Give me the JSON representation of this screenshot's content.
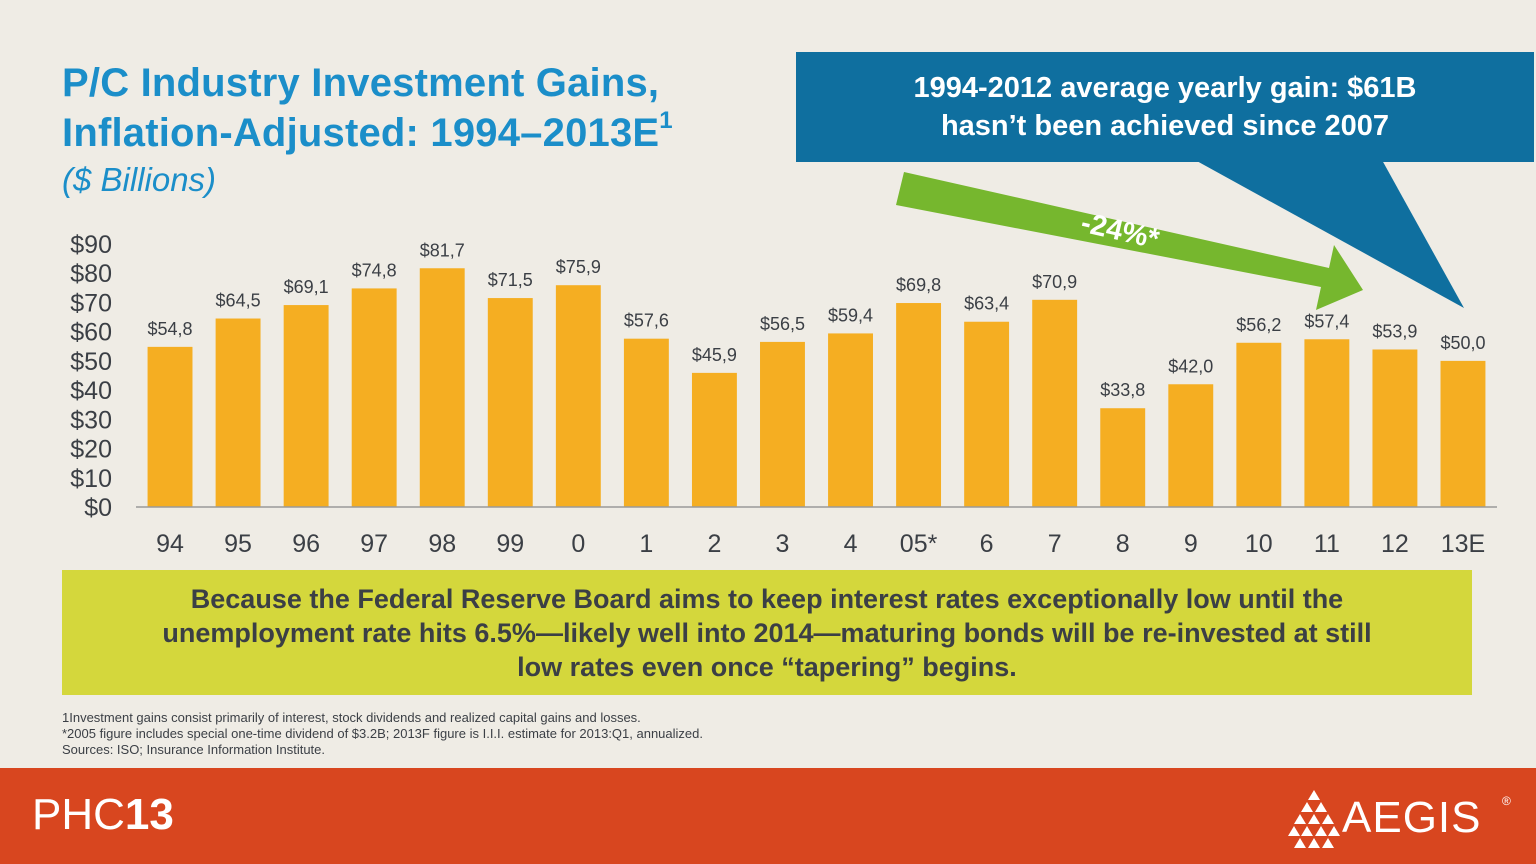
{
  "title": {
    "line1": "P/C Industry Investment Gains,",
    "line2": "Inflation-Adjusted: 1994–2013E",
    "sup": "1",
    "subtitle": "($ Billions)"
  },
  "callout": {
    "line1": "1994-2012 average yearly gain: $61B",
    "line2": "hasn’t been achieved since 2007",
    "arrow_label": "-24%*"
  },
  "message": {
    "line1": "Because the Federal Reserve Board aims to keep interest rates exceptionally low until the",
    "line2": "unemployment rate hits 6.5%—likely well into 2014—maturing bonds will be re-invested at still",
    "line3": "low rates even once “tapering” begins."
  },
  "footnotes": {
    "line1": "1Investment gains consist primarily of interest, stock dividends and realized capital gains and losses.",
    "line2": "*2005 figure includes special one-time dividend of $3.2B; 2013F figure is I.I.I.  estimate for 2013:Q1, annualized.",
    "line3": "Sources: ISO;  Insurance Information Institute."
  },
  "footer": {
    "brand_left_light": "PHC",
    "brand_left_bold": "13",
    "brand_right": "AEGIS",
    "registered": "®"
  },
  "colors": {
    "bar": "#f5ae22",
    "title": "#1b8ec9",
    "callout": "#0f6f9f",
    "arrow": "#76b72e",
    "message_bg": "#d4d73c",
    "footer": "#d8461f"
  },
  "chart_data": {
    "type": "bar",
    "categories": [
      "94",
      "95",
      "96",
      "97",
      "98",
      "99",
      "0",
      "1",
      "2",
      "3",
      "4",
      "05*",
      "6",
      "7",
      "8",
      "9",
      "10",
      "11",
      "12",
      "13E"
    ],
    "values": [
      54.8,
      64.5,
      69.1,
      74.8,
      81.7,
      71.5,
      75.9,
      57.6,
      45.9,
      56.5,
      59.4,
      69.8,
      63.4,
      70.9,
      33.8,
      42.0,
      56.2,
      57.4,
      53.9,
      50.0
    ],
    "data_labels": [
      "$54,8",
      "$64,5",
      "$69,1",
      "$74,8",
      "$81,7",
      "$71,5",
      "$75,9",
      "$57,6",
      "$45,9",
      "$56,5",
      "$59,4",
      "$69,8",
      "$63,4",
      "$70,9",
      "$33,8",
      "$42,0",
      "$56,2",
      "$57,4",
      "$53,9",
      "$50,0"
    ],
    "yticks": [
      "$0",
      "$10",
      "$20",
      "$30",
      "$40",
      "$50",
      "$60",
      "$70",
      "$80",
      "$90"
    ],
    "ylim": [
      0,
      90
    ],
    "grid": false,
    "title": "",
    "xlabel": "",
    "ylabel": ""
  }
}
